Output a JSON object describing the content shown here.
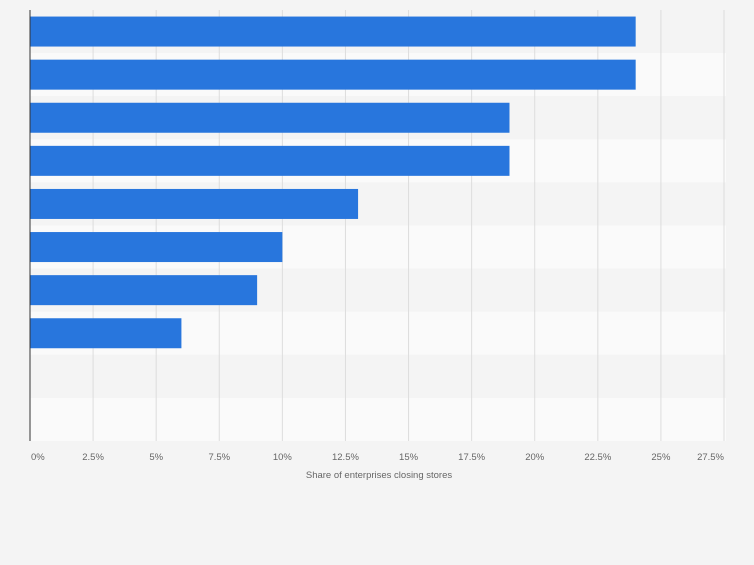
{
  "chart_data": {
    "type": "bar",
    "orientation": "horizontal",
    "categories": [
      "",
      "",
      "",
      "",
      "",
      "",
      "",
      "",
      "",
      ""
    ],
    "values": [
      24,
      24,
      19,
      19,
      13,
      10,
      9,
      6,
      0,
      0
    ],
    "xlabel": "Share of enterprises closing stores",
    "ylabel": "",
    "xlim": [
      0,
      27.5
    ],
    "ticks": [
      0,
      2.5,
      5,
      7.5,
      10,
      12.5,
      15,
      17.5,
      20,
      22.5,
      25,
      27.5
    ],
    "tick_labels": [
      "0%",
      "2.5%",
      "5%",
      "7.5%",
      "10%",
      "12.5%",
      "15%",
      "17.5%",
      "20%",
      "22.5%",
      "25%",
      "27.5%"
    ],
    "grid": true,
    "legend": "none",
    "colors": {
      "bar": "#2876dd",
      "band_light": "#fafafa",
      "band_dark": "#f4f4f4",
      "gridline": "#dddddd",
      "axis": "#333333",
      "text": "#666666"
    }
  }
}
